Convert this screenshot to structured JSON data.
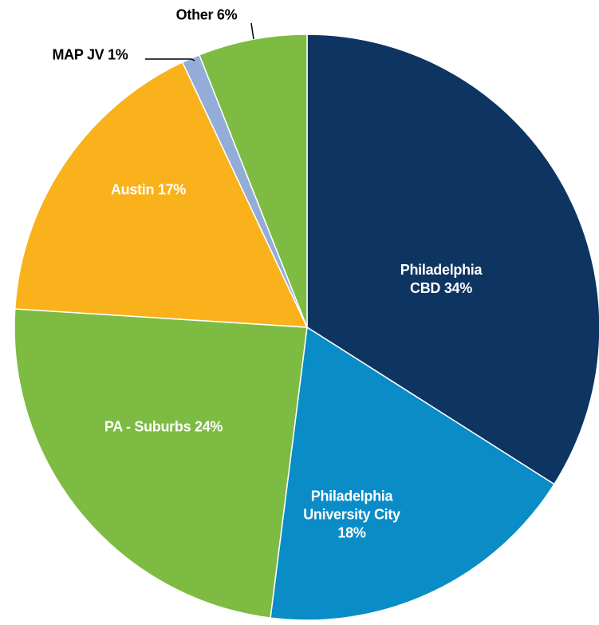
{
  "chart_data": {
    "type": "pie",
    "categories": [
      "Philadelphia CBD",
      "Philadelphia University City",
      "PA - Suburbs",
      "Austin",
      "MAP JV",
      "Other"
    ],
    "values": [
      34,
      18,
      24,
      17,
      1,
      6
    ],
    "value_labels": [
      "34%",
      "18%",
      "24%",
      "17%",
      "1%",
      "6%"
    ],
    "colors": [
      "#0e3461",
      "#0a8cc6",
      "#7dbb42",
      "#f9b21b",
      "#93acd8",
      "#7dbb42"
    ]
  }
}
